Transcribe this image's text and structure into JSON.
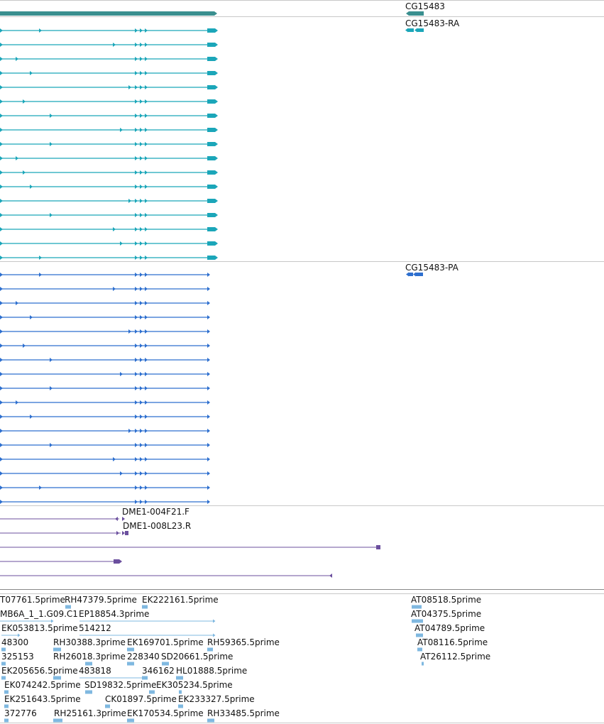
{
  "colors": {
    "gene": "#3a8f8f",
    "transcript": "#1ba6b9",
    "protein": "#2d6fcf",
    "clone": "#6b4f9e",
    "est": "#7fb8e0",
    "divider": "#c8c8c8"
  },
  "gene_track": {
    "label": "CG15483"
  },
  "transcript_track": {
    "label": "CG15483-RA"
  },
  "protein_track": {
    "label": "CG15483-PA"
  },
  "clone_track": {
    "labels": [
      "DME1-004F21.F",
      "DME1-008L23.R"
    ]
  },
  "est_track": {
    "labels": [
      "T07761.5prime",
      "RH47379.5prime",
      "EK222161.5prime",
      "AT08518.5prime",
      "MB6A_1_1.G09.C1",
      "EP18854.3prime",
      "AT04375.5prime",
      "EK053813.5prime",
      "514212",
      "AT04789.5prime",
      "48300",
      "RH30388.3prime",
      "EK169701.5prime",
      "RH59365.5prime",
      "AT08116.5prime",
      "325153",
      "RH26018.3prime",
      "228340",
      "SD20661.5prime",
      "AT26112.5prime",
      "EK205656.5prime",
      "483818",
      "346162",
      "HL01888.5prime",
      "EK074242.5prime",
      "SD19832.5prime",
      "EK305234.5prime",
      "EK251643.5prime",
      "CK01897.5prime",
      "EK233327.5prime",
      "372776",
      "RH25161.3prime",
      "EK170534.5prime",
      "RH33485.5prime"
    ]
  }
}
